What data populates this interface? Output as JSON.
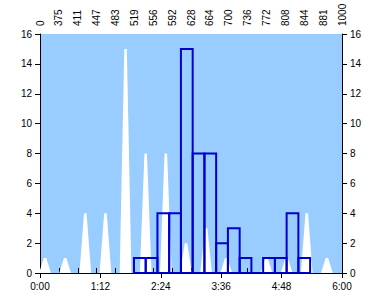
{
  "chart_data": {
    "type": "histogram",
    "xlim": [
      0,
      360
    ],
    "xticks": [
      {
        "value": 0,
        "label": "0:00"
      },
      {
        "value": 72,
        "label": "1:12"
      },
      {
        "value": 144,
        "label": "2:24"
      },
      {
        "value": 216,
        "label": "3:36"
      },
      {
        "value": 288,
        "label": "4:48"
      },
      {
        "value": 360,
        "label": "6:00"
      }
    ],
    "x2_categories": [
      "0",
      "375",
      "411",
      "447",
      "483",
      "519",
      "556",
      "592",
      "628",
      "664",
      "700",
      "736",
      "772",
      "808",
      "844",
      "881",
      "1000"
    ],
    "ylim": [
      0,
      16
    ],
    "yticks": [
      0,
      2,
      4,
      6,
      8,
      10,
      12,
      14,
      16
    ],
    "y2lim": [
      0,
      16
    ],
    "y2ticks": [
      0,
      2,
      4,
      6,
      8,
      10,
      12,
      14,
      16
    ],
    "grid": false,
    "series": [
      {
        "type": "area",
        "color": "#ffffff",
        "x": [
          6,
          30,
          54,
          78,
          102,
          126,
          150,
          174,
          198,
          222,
          246,
          270,
          294,
          318,
          342
        ],
        "values": [
          1,
          1,
          4,
          4,
          15,
          8,
          8,
          2,
          3,
          1,
          0,
          1,
          1,
          4,
          1
        ]
      },
      {
        "type": "histogram",
        "color": "#0000cc",
        "bins": [
          112,
          126,
          140,
          154,
          168,
          182,
          196,
          210,
          224,
          238,
          252,
          266,
          280,
          294,
          308,
          322
        ],
        "values": [
          1,
          1,
          4,
          4,
          15,
          8,
          8,
          2,
          3,
          1,
          0,
          1,
          1,
          4,
          1
        ]
      }
    ]
  }
}
